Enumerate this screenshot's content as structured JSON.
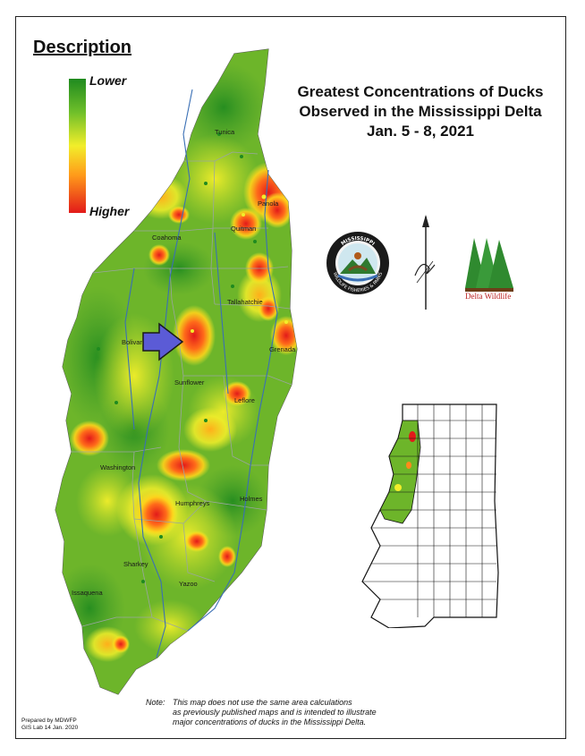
{
  "legend": {
    "title": "Description",
    "low_label": "Lower",
    "high_label": "Higher",
    "colors": [
      "#1f8a1f",
      "#6fbf2a",
      "#f2ee2a",
      "#ff9a1a",
      "#e21a1a"
    ]
  },
  "title": {
    "line1": "Greatest Concentrations of Ducks",
    "line2": "Observed in the Mississippi Delta",
    "line3": "Jan. 5 - 8, 2021"
  },
  "counties": [
    "Tunica",
    "Panola",
    "Coahoma",
    "Quitman",
    "Tallahatchie",
    "Bolivar",
    "Grenada",
    "Sunflower",
    "Leflore",
    "Washington",
    "Humphreys",
    "Holmes",
    "Sharkey",
    "Yazoo",
    "Issaquena"
  ],
  "seal_text": "MISSISSIPPI WILDLIFE FISHERIES & PARKS",
  "logo_text": "Delta Wildlife",
  "note": {
    "head": "Note:",
    "line1": "This map does not use the same area calculations",
    "line2": "as previously published maps and is intended to illustrate",
    "line3": "major concentrations of ducks in the Mississippi Delta."
  },
  "prepared": {
    "line1": "Prepared by MDWFP",
    "line2": "GIS Lab 14 Jan. 2020"
  },
  "map_colors": {
    "high": "#e21a1a",
    "mid": "#f2ee2a",
    "low": "#2f8f2a",
    "arrow": "#5b5bd6",
    "river": "#3a6fb5"
  }
}
